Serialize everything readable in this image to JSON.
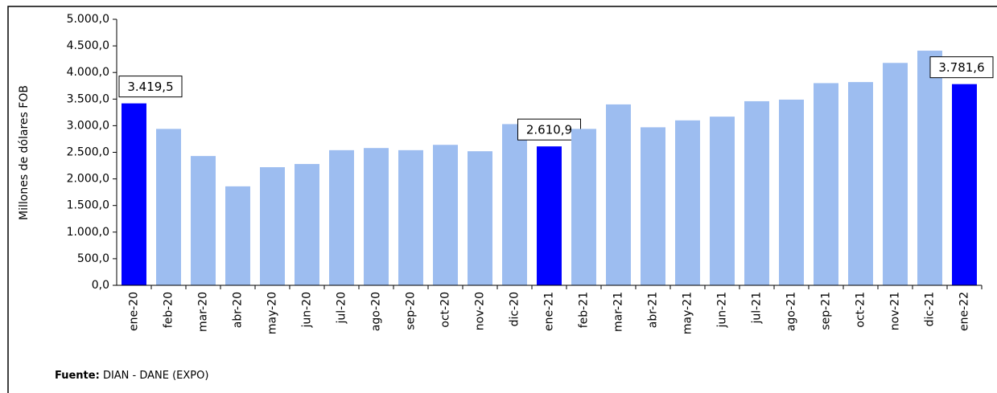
{
  "chart_data": {
    "type": "bar",
    "ylabel": "Millones de dólares FOB",
    "categories": [
      "ene-20",
      "feb-20",
      "mar-20",
      "abr-20",
      "may-20",
      "jun-20",
      "jul-20",
      "ago-20",
      "sep-20",
      "oct-20",
      "nov-20",
      "dic-20",
      "ene-21",
      "feb-21",
      "mar-21",
      "abr-21",
      "may-21",
      "jun-21",
      "jul-21",
      "ago-21",
      "sep-21",
      "oct-21",
      "nov-21",
      "dic-21",
      "ene-22"
    ],
    "values": [
      3419.5,
      2940,
      2430,
      1860,
      2220,
      2280,
      2540,
      2580,
      2540,
      2640,
      2520,
      3030,
      2610.9,
      2940,
      3400,
      2970,
      3100,
      3170,
      3460,
      3490,
      3800,
      3820,
      4180,
      4410,
      3781.6
    ],
    "value_labels": [
      "3.419,5",
      null,
      null,
      null,
      null,
      null,
      null,
      null,
      null,
      null,
      null,
      null,
      "2.610,9",
      null,
      null,
      null,
      null,
      null,
      null,
      null,
      null,
      null,
      null,
      null,
      "3.781,6"
    ],
    "color": "#9dbdf0",
    "highlight_color": "#0000ff",
    "ylim": [
      0,
      5000
    ],
    "yticks": [
      {
        "value": 0,
        "label": "0,0"
      },
      {
        "value": 500,
        "label": "500,0"
      },
      {
        "value": 1000,
        "label": "1.000,0"
      },
      {
        "value": 1500,
        "label": "1.500,0"
      },
      {
        "value": 2000,
        "label": "2.000,0"
      },
      {
        "value": 2500,
        "label": "2.500,0"
      },
      {
        "value": 3000,
        "label": "3.000,0"
      },
      {
        "value": 3500,
        "label": "3.500,0"
      },
      {
        "value": 4000,
        "label": "4.000,0"
      },
      {
        "value": 4500,
        "label": "4.500,0"
      },
      {
        "value": 5000,
        "label": "5.000,0"
      }
    ],
    "source": {
      "label": "Fuente:",
      "text": "DIAN - DANE (EXPO)"
    }
  }
}
